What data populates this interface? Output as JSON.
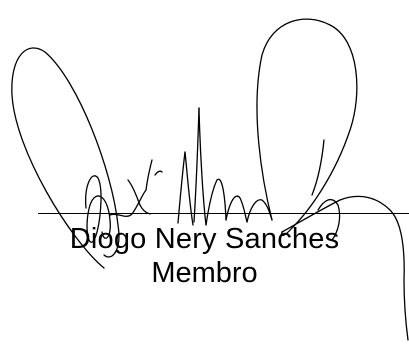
{
  "signature": {
    "name": "Diogo Nery Sanches",
    "role": "Membro",
    "ink_color": "#000000"
  }
}
